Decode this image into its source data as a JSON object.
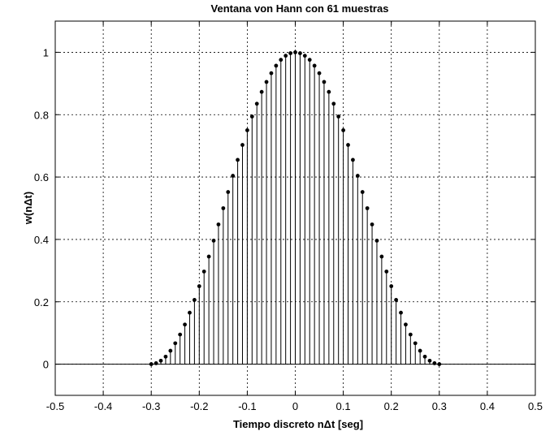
{
  "chart_data": {
    "type": "stem",
    "title": "Ventana von Hann con 61 muestras",
    "xlabel": "Tiempo discreto nΔt [seg]",
    "ylabel": "w(nΔt)",
    "xlim": [
      -0.5,
      0.5
    ],
    "ylim": [
      -0.1,
      1.1
    ],
    "xticks": [
      -0.5,
      -0.4,
      -0.3,
      -0.2,
      -0.1,
      0,
      0.1,
      0.2,
      0.3,
      0.4,
      0.5
    ],
    "xtick_labels": [
      "-0.5",
      "-0.4",
      "-0.3",
      "-0.2",
      "-0.1",
      "0",
      "0.1",
      "0.2",
      "0.3",
      "0.4",
      "0.5"
    ],
    "yticks": [
      0,
      0.2,
      0.4,
      0.6,
      0.8,
      1
    ],
    "ytick_labels": [
      "0",
      "0.2",
      "0.4",
      "0.6",
      "0.8",
      "1"
    ],
    "grid": true,
    "baseline": 0,
    "series": [
      {
        "x": [
          -0.3,
          -0.29,
          -0.28,
          -0.27,
          -0.26,
          -0.25,
          -0.24,
          -0.23,
          -0.22,
          -0.21,
          -0.2,
          -0.19,
          -0.18,
          -0.17,
          -0.16,
          -0.15,
          -0.14,
          -0.13,
          -0.12,
          -0.11,
          -0.1,
          -0.09,
          -0.08,
          -0.07,
          -0.06,
          -0.05,
          -0.04,
          -0.03,
          -0.02,
          -0.01,
          0,
          0.01,
          0.02,
          0.03,
          0.04,
          0.05,
          0.06,
          0.07,
          0.08,
          0.09,
          0.1,
          0.11,
          0.12,
          0.13,
          0.14,
          0.15,
          0.16,
          0.17,
          0.18,
          0.19,
          0.2,
          0.21,
          0.22,
          0.23,
          0.24,
          0.25,
          0.26,
          0.27,
          0.28,
          0.29,
          0.3
        ],
        "values": [
          0.0,
          0.003,
          0.011,
          0.024,
          0.043,
          0.067,
          0.095,
          0.127,
          0.165,
          0.206,
          0.25,
          0.297,
          0.345,
          0.396,
          0.448,
          0.5,
          0.552,
          0.604,
          0.655,
          0.703,
          0.75,
          0.794,
          0.835,
          0.873,
          0.905,
          0.933,
          0.957,
          0.976,
          0.989,
          0.997,
          1.0,
          0.997,
          0.989,
          0.976,
          0.957,
          0.933,
          0.905,
          0.873,
          0.835,
          0.794,
          0.75,
          0.703,
          0.655,
          0.604,
          0.552,
          0.5,
          0.448,
          0.396,
          0.345,
          0.297,
          0.25,
          0.206,
          0.165,
          0.127,
          0.095,
          0.067,
          0.043,
          0.024,
          0.011,
          0.003,
          0.0
        ]
      }
    ]
  }
}
